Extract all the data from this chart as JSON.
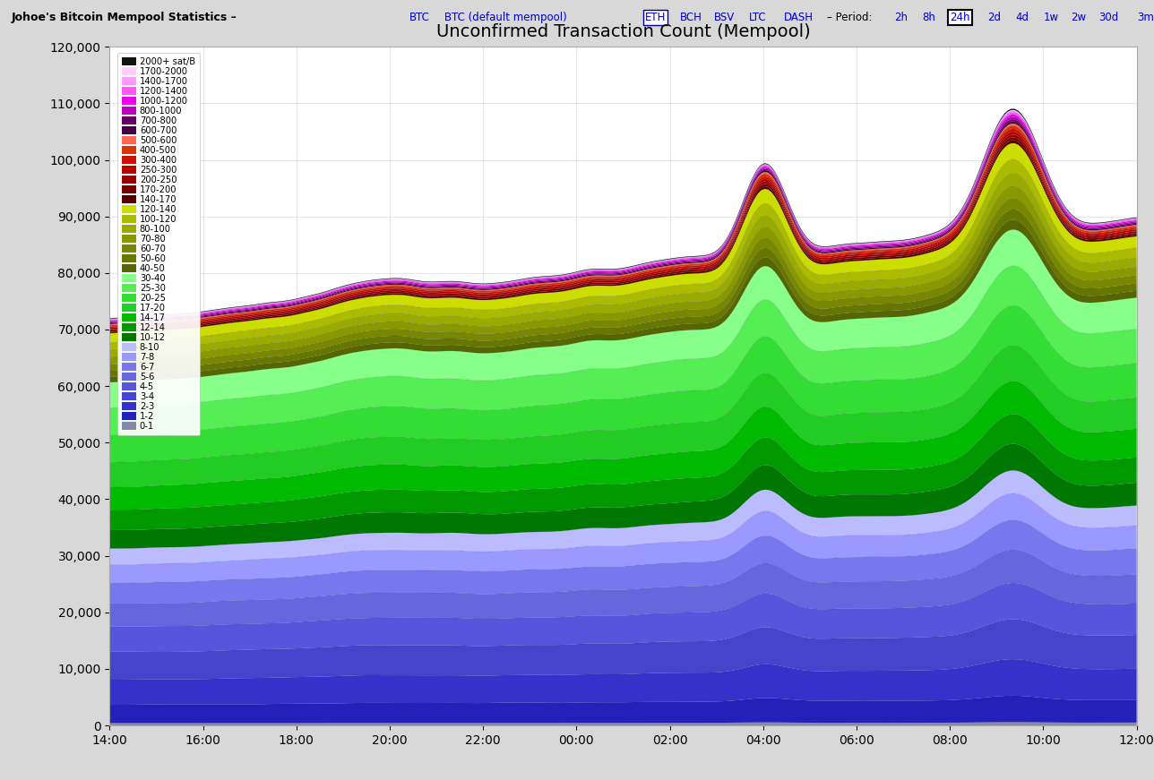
{
  "title": "Unconfirmed Transaction Count (Mempool)",
  "xtick_labels": [
    "14:00",
    "16:00",
    "18:00",
    "20:00",
    "22:00",
    "00:00",
    "02:00",
    "04:00",
    "06:00",
    "08:00",
    "10:00",
    "12:00"
  ],
  "ylim": [
    0,
    120000
  ],
  "yticks": [
    0,
    10000,
    20000,
    30000,
    40000,
    50000,
    60000,
    70000,
    80000,
    90000,
    100000,
    110000,
    120000
  ],
  "n_points": 288,
  "bg_color": "#d8d8d8",
  "plot_bg": "#ffffff",
  "layers_bottom_to_top": [
    {
      "label": "0-1",
      "color": "#8888aa"
    },
    {
      "label": "1-2",
      "color": "#2222bb"
    },
    {
      "label": "2-3",
      "color": "#3333cc"
    },
    {
      "label": "3-4",
      "color": "#4444cc"
    },
    {
      "label": "4-5",
      "color": "#5555dd"
    },
    {
      "label": "5-6",
      "color": "#6666dd"
    },
    {
      "label": "6-7",
      "color": "#7777ee"
    },
    {
      "label": "7-8",
      "color": "#9999ff"
    },
    {
      "label": "8-10",
      "color": "#bbbbff"
    },
    {
      "label": "10-12",
      "color": "#007700"
    },
    {
      "label": "12-14",
      "color": "#009900"
    },
    {
      "label": "14-17",
      "color": "#00bb00"
    },
    {
      "label": "17-20",
      "color": "#22cc22"
    },
    {
      "label": "20-25",
      "color": "#33dd33"
    },
    {
      "label": "25-30",
      "color": "#55ee55"
    },
    {
      "label": "30-40",
      "color": "#88ff88"
    },
    {
      "label": "40-50",
      "color": "#556600"
    },
    {
      "label": "50-60",
      "color": "#667700"
    },
    {
      "label": "60-70",
      "color": "#778800"
    },
    {
      "label": "70-80",
      "color": "#889900"
    },
    {
      "label": "80-100",
      "color": "#99aa00"
    },
    {
      "label": "100-120",
      "color": "#aabb00"
    },
    {
      "label": "120-140",
      "color": "#ccdd00"
    },
    {
      "label": "140-170",
      "color": "#550000"
    },
    {
      "label": "170-200",
      "color": "#770000"
    },
    {
      "label": "200-250",
      "color": "#990000"
    },
    {
      "label": "250-300",
      "color": "#bb0000"
    },
    {
      "label": "300-400",
      "color": "#cc1100"
    },
    {
      "label": "400-500",
      "color": "#dd3300"
    },
    {
      "label": "500-600",
      "color": "#ff6655"
    },
    {
      "label": "600-700",
      "color": "#440044"
    },
    {
      "label": "700-800",
      "color": "#660066"
    },
    {
      "label": "800-1000",
      "color": "#bb00bb"
    },
    {
      "label": "1000-1200",
      "color": "#ee00ee"
    },
    {
      "label": "1200-1400",
      "color": "#ff55ff"
    },
    {
      "label": "1400-1700",
      "color": "#ff99ff"
    },
    {
      "label": "1700-2000",
      "color": "#ffccff"
    },
    {
      "label": "2000+ sat/B",
      "color": "#111111"
    }
  ]
}
